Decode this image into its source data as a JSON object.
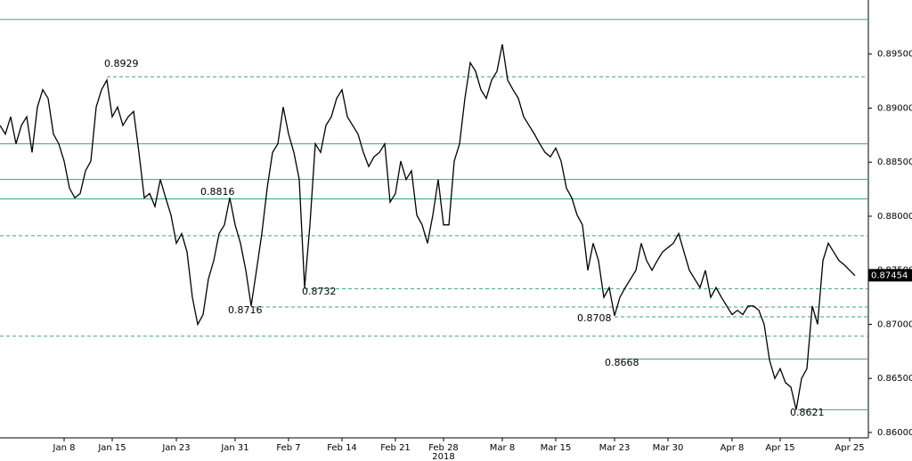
{
  "chart_data": {
    "type": "line",
    "categories": [
      null,
      null,
      null,
      null,
      null,
      null,
      null,
      null,
      null,
      null,
      null,
      null,
      "Jan 8",
      null,
      null,
      null,
      null,
      null,
      null,
      null,
      null,
      "Jan 15",
      null,
      null,
      null,
      null,
      null,
      null,
      null,
      null,
      null,
      null,
      null,
      "Jan 23",
      null,
      null,
      null,
      null,
      null,
      null,
      null,
      null,
      null,
      null,
      "Jan 31",
      null,
      null,
      null,
      null,
      null,
      null,
      null,
      null,
      null,
      "Feb 7",
      null,
      null,
      null,
      null,
      null,
      null,
      null,
      null,
      null,
      "Feb 14",
      null,
      null,
      null,
      null,
      null,
      null,
      null,
      null,
      null,
      "Feb 21",
      null,
      null,
      null,
      null,
      null,
      null,
      null,
      null,
      "Feb 28",
      null,
      null,
      null,
      null,
      null,
      null,
      null,
      null,
      null,
      null,
      "Mar 8",
      null,
      null,
      null,
      null,
      null,
      null,
      null,
      null,
      null,
      "Mar 15",
      null,
      null,
      null,
      null,
      null,
      null,
      null,
      null,
      null,
      null,
      "Mar 23",
      null,
      null,
      null,
      null,
      null,
      null,
      null,
      null,
      null,
      "Mar 30",
      null,
      null,
      null,
      null,
      null,
      null,
      null,
      null,
      null,
      null,
      null,
      "Apr 8",
      null,
      null,
      null,
      null,
      null,
      null,
      null,
      null,
      "Apr 15",
      null,
      null,
      null,
      null,
      null,
      null,
      null,
      null,
      null,
      null,
      null,
      null,
      "Apr 25",
      null
    ],
    "x_group_label": "2018",
    "series": [
      {
        "color": "#000000",
        "values": [
          0.8884,
          0.8876,
          0.8892,
          0.8867,
          0.8884,
          0.8892,
          0.8859,
          0.8901,
          0.8917,
          0.8909,
          0.8876,
          0.8867,
          0.8851,
          0.8826,
          0.8817,
          0.8821,
          0.8842,
          0.8851,
          0.8901,
          0.8917,
          0.8926,
          0.8892,
          0.8901,
          0.8884,
          0.8892,
          0.8897,
          0.8859,
          0.8817,
          0.8821,
          0.8809,
          0.8834,
          0.8817,
          0.8801,
          0.8775,
          0.8784,
          0.8767,
          0.8725,
          0.87,
          0.8709,
          0.8742,
          0.8759,
          0.8784,
          0.8792,
          0.8817,
          0.8792,
          0.8775,
          0.875,
          0.8717,
          0.875,
          0.8784,
          0.8826,
          0.8859,
          0.8867,
          0.8901,
          0.8876,
          0.8859,
          0.8834,
          0.8734,
          0.8792,
          0.8867,
          0.8859,
          0.8884,
          0.8892,
          0.8909,
          0.8917,
          0.8892,
          0.8884,
          0.8876,
          0.8859,
          0.8846,
          0.8855,
          0.8859,
          0.8867,
          0.8813,
          0.8821,
          0.8851,
          0.8834,
          0.8842,
          0.8801,
          0.8792,
          0.8775,
          0.8801,
          0.8834,
          0.8792,
          0.8792,
          0.8851,
          0.8867,
          0.8909,
          0.8942,
          0.8934,
          0.8917,
          0.8909,
          0.8926,
          0.8934,
          0.8959,
          0.8926,
          0.8917,
          0.8909,
          0.8892,
          0.8884,
          0.8876,
          0.8867,
          0.8859,
          0.8855,
          0.8863,
          0.8851,
          0.8826,
          0.8817,
          0.8801,
          0.8792,
          0.875,
          0.8775,
          0.8759,
          0.8725,
          0.8734,
          0.8708,
          0.8725,
          0.8734,
          0.8742,
          0.875,
          0.8775,
          0.8759,
          0.875,
          0.8759,
          0.8767,
          0.8771,
          0.8775,
          0.8784,
          0.8767,
          0.875,
          0.8742,
          0.8734,
          0.875,
          0.8725,
          0.8734,
          0.8725,
          0.8717,
          0.8709,
          0.8713,
          0.8709,
          0.8717,
          0.8717,
          0.8713,
          0.87,
          0.8667,
          0.865,
          0.8659,
          0.8646,
          0.8642,
          0.8621,
          0.865,
          0.8659,
          0.8717,
          0.87,
          0.8759,
          0.8775,
          0.8767,
          0.8759,
          0.8755,
          0.875,
          0.8745
        ]
      }
    ],
    "last_price": {
      "value": 0.87454,
      "label": "0.87454"
    },
    "ylim": [
      0.8595,
      0.9
    ],
    "yticks": [
      {
        "value": 0.86,
        "label": "0.86000"
      },
      {
        "value": 0.865,
        "label": "0.86500"
      },
      {
        "value": 0.87,
        "label": "0.87000"
      },
      {
        "value": 0.875,
        "label": "0.87500"
      },
      {
        "value": 0.88,
        "label": "0.88000"
      },
      {
        "value": 0.885,
        "label": "0.88500"
      },
      {
        "value": 0.89,
        "label": "0.89000"
      },
      {
        "value": 0.895,
        "label": "0.89500"
      }
    ],
    "levels": [
      {
        "value": 0.8982,
        "dashed": false
      },
      {
        "value": 0.8929,
        "dashed": true
      },
      {
        "value": 0.8867,
        "dashed": false
      },
      {
        "value": 0.8834,
        "dashed": false
      },
      {
        "value": 0.8816,
        "dashed": false
      },
      {
        "value": 0.8782,
        "dashed": true
      },
      {
        "value": 0.8733,
        "dashed": true
      },
      {
        "value": 0.8716,
        "dashed": true
      },
      {
        "value": 0.8707,
        "dashed": true
      },
      {
        "value": 0.8689,
        "dashed": true
      },
      {
        "value": 0.8668,
        "dashed": false
      },
      {
        "value": 0.8621,
        "dashed": false
      }
    ],
    "level_color": "#3aa676",
    "annotations": [
      0.8929,
      0.8816,
      0.8716,
      0.8732,
      0.8708,
      0.8668,
      0.8621
    ]
  }
}
